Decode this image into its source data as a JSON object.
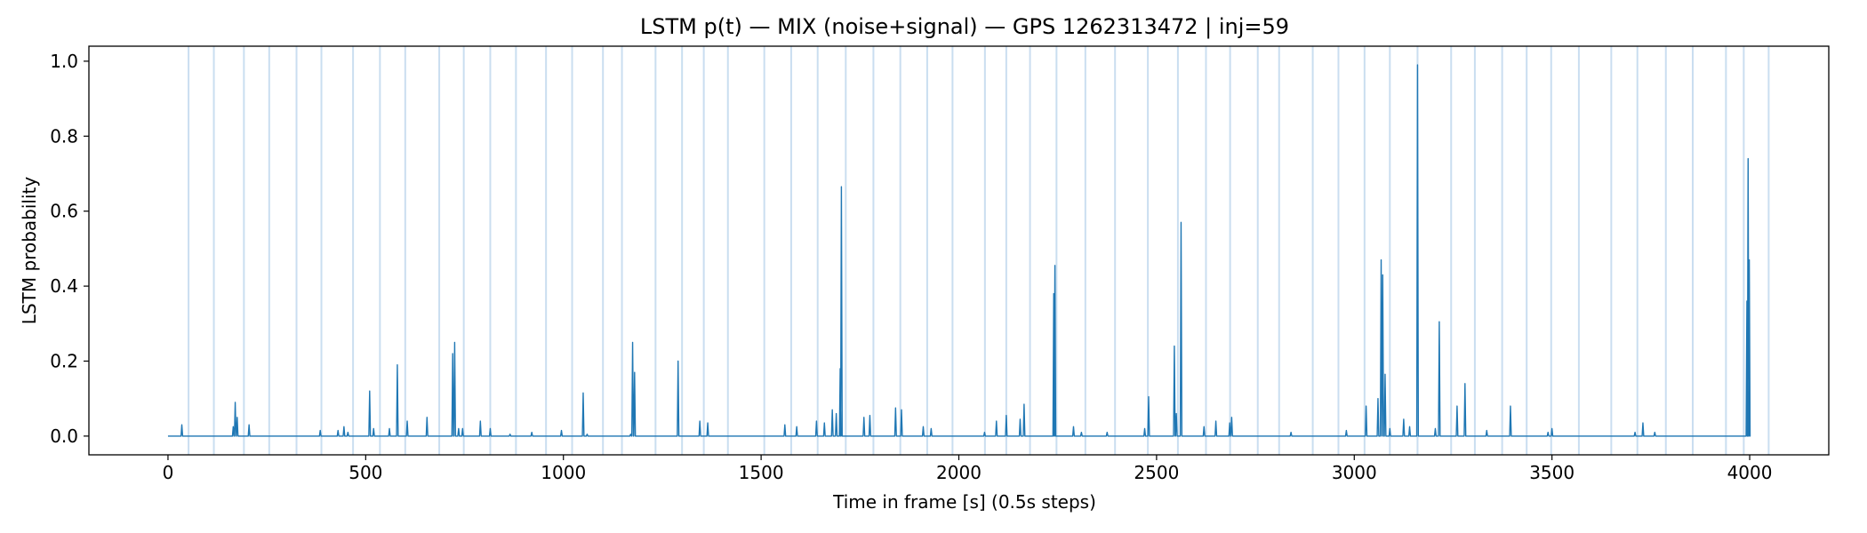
{
  "chart_data": {
    "type": "line",
    "title": "LSTM p(t) — MIX (noise+signal) — GPS 1262313472 | inj=59",
    "xlabel": "Time in frame [s] (0.5s steps)",
    "ylabel": "LSTM probability",
    "xlim": [
      -200,
      4200
    ],
    "ylim": [
      -0.05,
      1.04
    ],
    "x_ticks": [
      0,
      500,
      1000,
      1500,
      2000,
      2500,
      3000,
      3500,
      4000
    ],
    "y_ticks": [
      0.0,
      0.2,
      0.4,
      0.6,
      0.8,
      1.0
    ],
    "x_tick_labels": [
      "0",
      "500",
      "1000",
      "1500",
      "2000",
      "2500",
      "3000",
      "3500",
      "4000"
    ],
    "y_tick_labels": [
      "0.0",
      "0.2",
      "0.4",
      "0.6",
      "0.8",
      "1.0"
    ],
    "grid": false,
    "line_color": "#1f77b4",
    "injection_line_color": "#a6c8e6",
    "injection_times": [
      52,
      116,
      192,
      256,
      325,
      388,
      468,
      536,
      600,
      686,
      748,
      815,
      880,
      956,
      1022,
      1100,
      1148,
      1233,
      1300,
      1355,
      1416,
      1508,
      1576,
      1643,
      1714,
      1784,
      1852,
      1920,
      1984,
      2066,
      2120,
      2180,
      2247,
      2320,
      2395,
      2478,
      2554,
      2625,
      2686,
      2756,
      2810,
      2895,
      2960,
      3026,
      3090,
      3160,
      3245,
      3305,
      3374,
      3436,
      3498,
      3568,
      3650,
      3716,
      3788,
      3856,
      3940,
      3985,
      4048
    ],
    "peaks": [
      {
        "x": 35,
        "y": 0.03
      },
      {
        "x": 165,
        "y": 0.025
      },
      {
        "x": 170,
        "y": 0.09
      },
      {
        "x": 175,
        "y": 0.05
      },
      {
        "x": 205,
        "y": 0.03
      },
      {
        "x": 385,
        "y": 0.015
      },
      {
        "x": 430,
        "y": 0.015
      },
      {
        "x": 445,
        "y": 0.025
      },
      {
        "x": 455,
        "y": 0.01
      },
      {
        "x": 510,
        "y": 0.12
      },
      {
        "x": 520,
        "y": 0.02
      },
      {
        "x": 560,
        "y": 0.02
      },
      {
        "x": 580,
        "y": 0.19
      },
      {
        "x": 605,
        "y": 0.04
      },
      {
        "x": 655,
        "y": 0.05
      },
      {
        "x": 720,
        "y": 0.22
      },
      {
        "x": 725,
        "y": 0.25
      },
      {
        "x": 735,
        "y": 0.02
      },
      {
        "x": 745,
        "y": 0.02
      },
      {
        "x": 790,
        "y": 0.04
      },
      {
        "x": 815,
        "y": 0.02
      },
      {
        "x": 865,
        "y": 0.005
      },
      {
        "x": 920,
        "y": 0.01
      },
      {
        "x": 995,
        "y": 0.015
      },
      {
        "x": 1050,
        "y": 0.115
      },
      {
        "x": 1060,
        "y": 0.005
      },
      {
        "x": 1170,
        "y": 0.005
      },
      {
        "x": 1175,
        "y": 0.25
      },
      {
        "x": 1180,
        "y": 0.17
      },
      {
        "x": 1290,
        "y": 0.2
      },
      {
        "x": 1345,
        "y": 0.04
      },
      {
        "x": 1365,
        "y": 0.035
      },
      {
        "x": 1560,
        "y": 0.03
      },
      {
        "x": 1590,
        "y": 0.025
      },
      {
        "x": 1640,
        "y": 0.04
      },
      {
        "x": 1660,
        "y": 0.035
      },
      {
        "x": 1680,
        "y": 0.07
      },
      {
        "x": 1690,
        "y": 0.06
      },
      {
        "x": 1700,
        "y": 0.18
      },
      {
        "x": 1703,
        "y": 0.665
      },
      {
        "x": 1760,
        "y": 0.05
      },
      {
        "x": 1775,
        "y": 0.055
      },
      {
        "x": 1840,
        "y": 0.075
      },
      {
        "x": 1855,
        "y": 0.07
      },
      {
        "x": 1910,
        "y": 0.025
      },
      {
        "x": 1930,
        "y": 0.02
      },
      {
        "x": 2065,
        "y": 0.01
      },
      {
        "x": 2095,
        "y": 0.04
      },
      {
        "x": 2120,
        "y": 0.055
      },
      {
        "x": 2155,
        "y": 0.045
      },
      {
        "x": 2165,
        "y": 0.085
      },
      {
        "x": 2240,
        "y": 0.38
      },
      {
        "x": 2243,
        "y": 0.455
      },
      {
        "x": 2290,
        "y": 0.025
      },
      {
        "x": 2310,
        "y": 0.01
      },
      {
        "x": 2375,
        "y": 0.01
      },
      {
        "x": 2470,
        "y": 0.02
      },
      {
        "x": 2480,
        "y": 0.105
      },
      {
        "x": 2545,
        "y": 0.24
      },
      {
        "x": 2550,
        "y": 0.06
      },
      {
        "x": 2562,
        "y": 0.57
      },
      {
        "x": 2620,
        "y": 0.025
      },
      {
        "x": 2650,
        "y": 0.04
      },
      {
        "x": 2685,
        "y": 0.035
      },
      {
        "x": 2690,
        "y": 0.05
      },
      {
        "x": 2840,
        "y": 0.01
      },
      {
        "x": 2980,
        "y": 0.015
      },
      {
        "x": 3030,
        "y": 0.08
      },
      {
        "x": 3060,
        "y": 0.1
      },
      {
        "x": 3068,
        "y": 0.47
      },
      {
        "x": 3072,
        "y": 0.43
      },
      {
        "x": 3078,
        "y": 0.165
      },
      {
        "x": 3090,
        "y": 0.02
      },
      {
        "x": 3125,
        "y": 0.045
      },
      {
        "x": 3140,
        "y": 0.025
      },
      {
        "x": 3160,
        "y": 0.99
      },
      {
        "x": 3205,
        "y": 0.02
      },
      {
        "x": 3215,
        "y": 0.305
      },
      {
        "x": 3260,
        "y": 0.08
      },
      {
        "x": 3280,
        "y": 0.14
      },
      {
        "x": 3335,
        "y": 0.015
      },
      {
        "x": 3395,
        "y": 0.08
      },
      {
        "x": 3490,
        "y": 0.01
      },
      {
        "x": 3500,
        "y": 0.02
      },
      {
        "x": 3710,
        "y": 0.01
      },
      {
        "x": 3730,
        "y": 0.035
      },
      {
        "x": 3760,
        "y": 0.01
      },
      {
        "x": 3993,
        "y": 0.36
      },
      {
        "x": 3996,
        "y": 0.74
      },
      {
        "x": 3999,
        "y": 0.47
      }
    ]
  }
}
